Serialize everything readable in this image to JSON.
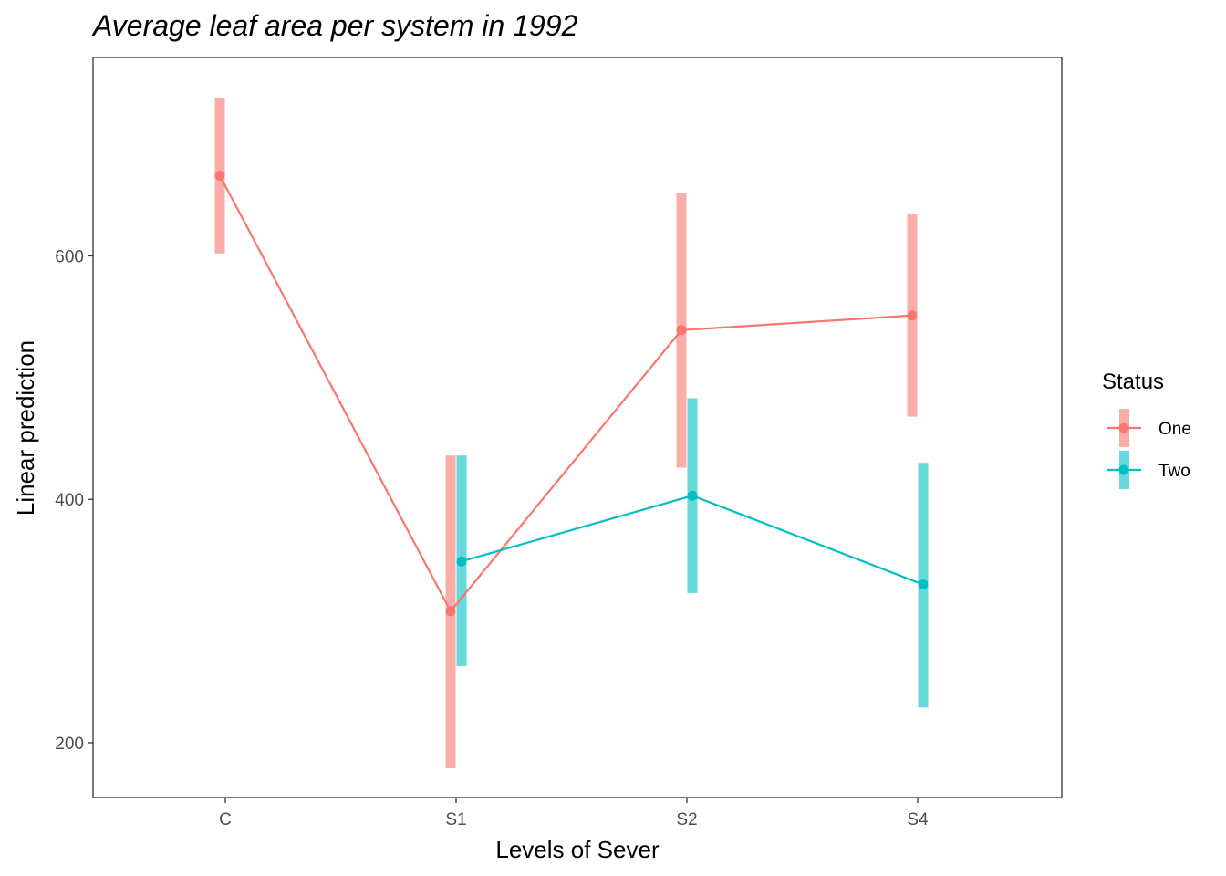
{
  "chart_data": {
    "type": "line",
    "title": "Average leaf area per system in 1992",
    "xlabel": "Levels of Sever",
    "ylabel": "Linear prediction",
    "categories": [
      "C",
      "S1",
      "S2",
      "S4"
    ],
    "ylim": [
      155,
      763
    ],
    "yticks": [
      200,
      400,
      600
    ],
    "grid": false,
    "legend": {
      "title": "Status",
      "position": "right"
    },
    "series": [
      {
        "name": "One",
        "color": "#F8766D",
        "bar_color": "#F8766D",
        "values": [
          666,
          308,
          539,
          551
        ],
        "lower": [
          602,
          179,
          426,
          468
        ],
        "upper": [
          730,
          436,
          652,
          634
        ],
        "present": [
          true,
          true,
          true,
          true
        ]
      },
      {
        "name": "Two",
        "color": "#00BFC4",
        "bar_color": "#00BFC4",
        "values": [
          null,
          349,
          403,
          330
        ],
        "lower": [
          null,
          263,
          323,
          229
        ],
        "upper": [
          null,
          436,
          483,
          430
        ],
        "present": [
          false,
          true,
          true,
          true
        ]
      }
    ]
  }
}
